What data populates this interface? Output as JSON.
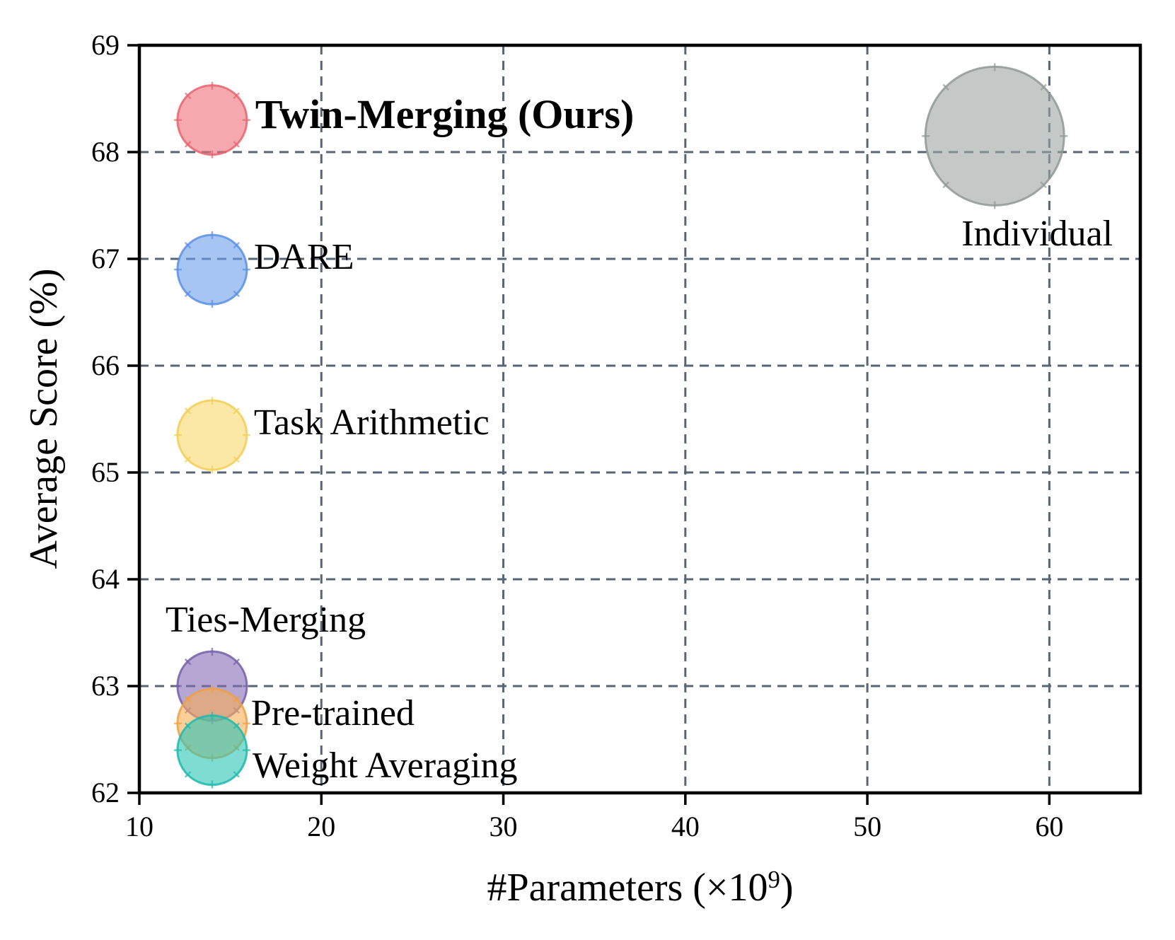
{
  "figure": {
    "background": "#ffffff",
    "text_color": "#000000",
    "spine_color": "#000000",
    "grid_color": "#566676"
  },
  "chart_data": {
    "type": "scatter",
    "title": "",
    "xlabel": "#Parameters (×10⁹)",
    "xlabel_prefix": "#Parameters (×10",
    "xlabel_sup": "9",
    "xlabel_suffix": ")",
    "ylabel": "Average Score (%)",
    "xlim": [
      10,
      65
    ],
    "ylim": [
      62,
      69
    ],
    "x_ticks": [
      10,
      20,
      30,
      40,
      50,
      60
    ],
    "y_ticks": [
      62,
      63,
      64,
      65,
      66,
      67,
      68,
      69
    ],
    "grid": "dashed both axes",
    "legend_position": "none",
    "bubble_note": "bubble area proportional to parameter count",
    "points": [
      {
        "label": "Ties-Merging",
        "x": 14,
        "y": 63.0,
        "size": 14,
        "fill": "#846BB5",
        "edge": "#745FA6",
        "emphasis": false
      },
      {
        "label": "Pre-trained",
        "x": 14,
        "y": 62.65,
        "size": 14,
        "fill": "#F8AE57",
        "edge": "#F0A043",
        "emphasis": false
      },
      {
        "label": "Weight Averaging",
        "x": 14,
        "y": 62.4,
        "size": 14,
        "fill": "#29C5B6",
        "edge": "#1FB9AB",
        "emphasis": false
      },
      {
        "label": "Task Arithmetic",
        "x": 14,
        "y": 65.35,
        "size": 14,
        "fill": "#F8D96B",
        "edge": "#F2CE55",
        "emphasis": false
      },
      {
        "label": "DARE",
        "x": 14,
        "y": 66.9,
        "size": 14,
        "fill": "#6D9EEB",
        "edge": "#5B8FE4",
        "emphasis": false
      },
      {
        "label": "Twin-Merging (Ours)",
        "x": 14,
        "y": 68.3,
        "size": 14,
        "fill": "#EE7078",
        "edge": "#E7636D",
        "emphasis": true
      },
      {
        "label": "Individual",
        "x": 57,
        "y": 68.15,
        "size": 56,
        "fill": "#9DA3A0",
        "edge": "#909995",
        "emphasis": false
      }
    ]
  }
}
